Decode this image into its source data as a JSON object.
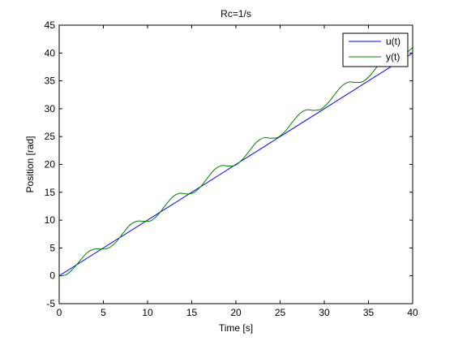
{
  "chart_data": {
    "type": "line",
    "title": "Rc=1/s",
    "xlabel": "Time [s]",
    "ylabel": "Position [rad]",
    "xlim": [
      0,
      40
    ],
    "ylim": [
      -5,
      45
    ],
    "xticks": [
      0,
      5,
      10,
      15,
      20,
      25,
      30,
      35,
      40
    ],
    "yticks": [
      -5,
      0,
      5,
      10,
      15,
      20,
      25,
      30,
      35,
      40,
      45
    ],
    "grid": false,
    "legend_position": "top-right",
    "series": [
      {
        "name": "u(t)",
        "color": "#0000ff",
        "x": [
          0,
          40
        ],
        "y": [
          0,
          40
        ]
      },
      {
        "name": "y(t)",
        "color": "#008000",
        "x": [
          0,
          0.8,
          1.6,
          2.4,
          3.2,
          4.0,
          4.8,
          5.6,
          6.4,
          7.2,
          8.0,
          8.8,
          9.6,
          10.4,
          11.2,
          12.0,
          12.8,
          13.6,
          14.4,
          15.2,
          16.0,
          16.8,
          17.6,
          18.4,
          19.2,
          20.0,
          20.8,
          21.6,
          22.4,
          23.2,
          24.0,
          24.8,
          25.6,
          26.4,
          27.2,
          28.0,
          28.8,
          29.6,
          30.4,
          31.2,
          32.0,
          32.8,
          33.6,
          34.4,
          35.2,
          36.0,
          36.8,
          37.6,
          38.4,
          39.2,
          40.0
        ],
        "y": [
          0.0,
          0.2,
          1.3,
          2.8,
          4.2,
          4.8,
          4.8,
          5.0,
          6.0,
          7.6,
          9.1,
          9.8,
          9.8,
          9.9,
          11.0,
          12.6,
          14.1,
          14.8,
          14.7,
          14.9,
          16.0,
          17.6,
          19.1,
          19.8,
          19.7,
          19.9,
          21.0,
          22.6,
          24.1,
          24.8,
          24.7,
          24.9,
          26.0,
          27.6,
          29.1,
          29.8,
          29.7,
          29.9,
          31.0,
          32.6,
          34.1,
          34.8,
          34.7,
          34.9,
          36.0,
          37.6,
          39.1,
          39.8,
          39.7,
          39.9,
          41.0
        ]
      }
    ]
  }
}
